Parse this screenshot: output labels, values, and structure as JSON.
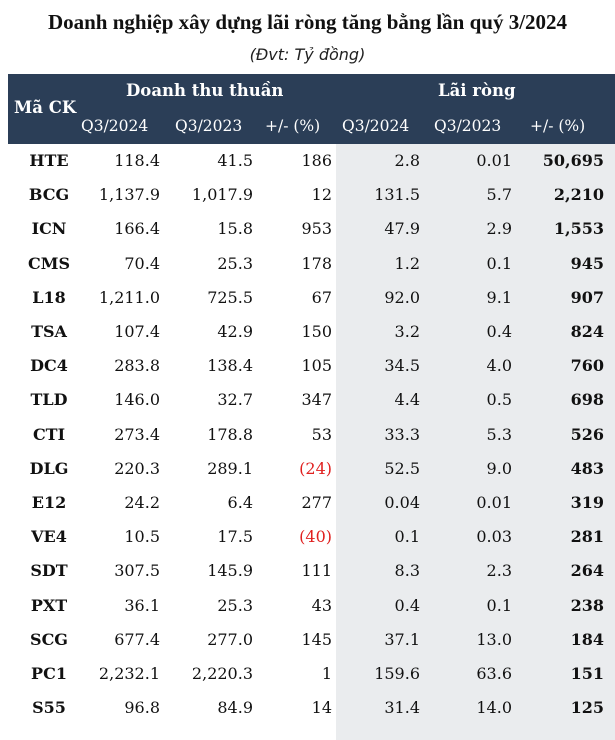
{
  "title": "Doanh nghiệp xây dựng lãi ròng tăng bằng lần quý 3/2024",
  "unit_note": "(Đvt: Tỷ đồng)",
  "header": {
    "code": "Mã CK",
    "group_revenue": "Doanh thu thuần",
    "group_profit": "Lãi ròng",
    "rev_q3_2024": "Q3/2024",
    "rev_q3_2023": "Q3/2023",
    "rev_change": "+/- (%)",
    "prof_q3_2024": "Q3/2024",
    "prof_q3_2023": "Q3/2023",
    "prof_change": "+/- (%)"
  },
  "colors": {
    "header_bg": "#2b3e57",
    "shade": "#eaecee",
    "negative": "#e0201f"
  },
  "rows": [
    {
      "code": "HTE",
      "rev24": "118.4",
      "rev23": "41.5",
      "revchg": "186",
      "neg": false,
      "prof24": "2.8",
      "prof23": "0.01",
      "profchg": "50,695"
    },
    {
      "code": "BCG",
      "rev24": "1,137.9",
      "rev23": "1,017.9",
      "revchg": "12",
      "neg": false,
      "prof24": "131.5",
      "prof23": "5.7",
      "profchg": "2,210"
    },
    {
      "code": "ICN",
      "rev24": "166.4",
      "rev23": "15.8",
      "revchg": "953",
      "neg": false,
      "prof24": "47.9",
      "prof23": "2.9",
      "profchg": "1,553"
    },
    {
      "code": "CMS",
      "rev24": "70.4",
      "rev23": "25.3",
      "revchg": "178",
      "neg": false,
      "prof24": "1.2",
      "prof23": "0.1",
      "profchg": "945"
    },
    {
      "code": "L18",
      "rev24": "1,211.0",
      "rev23": "725.5",
      "revchg": "67",
      "neg": false,
      "prof24": "92.0",
      "prof23": "9.1",
      "profchg": "907"
    },
    {
      "code": "TSA",
      "rev24": "107.4",
      "rev23": "42.9",
      "revchg": "150",
      "neg": false,
      "prof24": "3.2",
      "prof23": "0.4",
      "profchg": "824"
    },
    {
      "code": "DC4",
      "rev24": "283.8",
      "rev23": "138.4",
      "revchg": "105",
      "neg": false,
      "prof24": "34.5",
      "prof23": "4.0",
      "profchg": "760"
    },
    {
      "code": "TLD",
      "rev24": "146.0",
      "rev23": "32.7",
      "revchg": "347",
      "neg": false,
      "prof24": "4.4",
      "prof23": "0.5",
      "profchg": "698"
    },
    {
      "code": "CTI",
      "rev24": "273.4",
      "rev23": "178.8",
      "revchg": "53",
      "neg": false,
      "prof24": "33.3",
      "prof23": "5.3",
      "profchg": "526"
    },
    {
      "code": "DLG",
      "rev24": "220.3",
      "rev23": "289.1",
      "revchg": "(24)",
      "neg": true,
      "prof24": "52.5",
      "prof23": "9.0",
      "profchg": "483"
    },
    {
      "code": "E12",
      "rev24": "24.2",
      "rev23": "6.4",
      "revchg": "277",
      "neg": false,
      "prof24": "0.04",
      "prof23": "0.01",
      "profchg": "319"
    },
    {
      "code": "VE4",
      "rev24": "10.5",
      "rev23": "17.5",
      "revchg": "(40)",
      "neg": true,
      "prof24": "0.1",
      "prof23": "0.03",
      "profchg": "281"
    },
    {
      "code": "SDT",
      "rev24": "307.5",
      "rev23": "145.9",
      "revchg": "111",
      "neg": false,
      "prof24": "8.3",
      "prof23": "2.3",
      "profchg": "264"
    },
    {
      "code": "PXT",
      "rev24": "36.1",
      "rev23": "25.3",
      "revchg": "43",
      "neg": false,
      "prof24": "0.4",
      "prof23": "0.1",
      "profchg": "238"
    },
    {
      "code": "SCG",
      "rev24": "677.4",
      "rev23": "277.0",
      "revchg": "145",
      "neg": false,
      "prof24": "37.1",
      "prof23": "13.0",
      "profchg": "184"
    },
    {
      "code": "PC1",
      "rev24": "2,232.1",
      "rev23": "2,220.3",
      "revchg": "1",
      "neg": false,
      "prof24": "159.6",
      "prof23": "63.6",
      "profchg": "151"
    },
    {
      "code": "S55",
      "rev24": "96.8",
      "rev23": "84.9",
      "revchg": "14",
      "neg": false,
      "prof24": "31.4",
      "prof23": "14.0",
      "profchg": "125"
    }
  ]
}
